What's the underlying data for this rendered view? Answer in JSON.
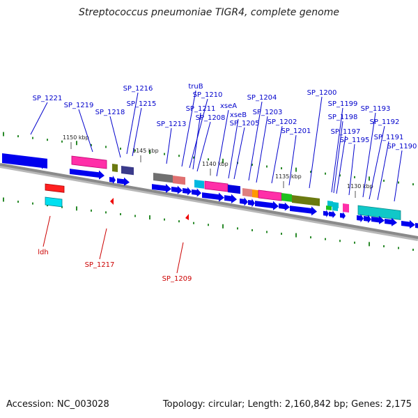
{
  "title": "Streptococcus pneumoniae TIGR4, complete genome",
  "footer": {
    "accession": "Accession: NC_003028",
    "topology": "Topology: circular; Length: 2,160,842 bp; Genes: 2,175"
  },
  "colors": {
    "backbone": "#8a8a8a",
    "gene_arrow": "#0000ee",
    "tick": "#2a8a2a",
    "label_blue": "#0000cc",
    "label_red": "#cc0000"
  },
  "kbp_marks": [
    "1150 kbp",
    "1145 kbp",
    "1140 kbp",
    "1135 kbp",
    "1130 kbp"
  ],
  "gene_labels_top": [
    "SP_1221",
    "SP_1219",
    "SP_1218",
    "SP_1216",
    "SP_1215",
    "SP_1213",
    "truB",
    "SP_1210",
    "SP_1211",
    "SP_1208",
    "xseA",
    "xseB",
    "SP_1205",
    "SP_1204",
    "SP_1203",
    "SP_1202",
    "SP_1201",
    "SP_1200",
    "SP_1199",
    "SP_1198",
    "SP_1197",
    "SP_1195",
    "SP_1193",
    "SP_1192",
    "SP_1191",
    "SP_1190"
  ],
  "gene_labels_bottom": [
    "ldh",
    "SP_1217",
    "SP_1209"
  ]
}
